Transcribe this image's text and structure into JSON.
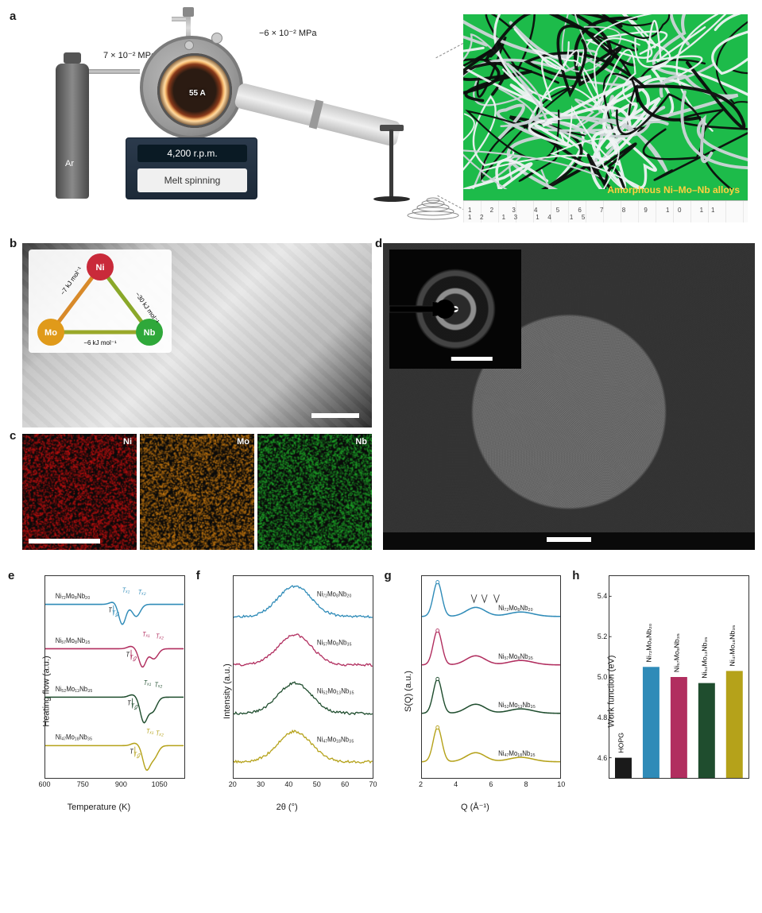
{
  "palette": {
    "blue": "#2f8bb8",
    "magenta": "#b12e5f",
    "dgreen": "#1f4d2e",
    "olive": "#b5a21a",
    "black": "#1a1a1a",
    "bg": "#ffffff"
  },
  "compositions": {
    "c1": "Ni₇₂Mo₈Nb₂₀",
    "c2": "Ni₅₇Mo₈Nb₃₅",
    "c3": "Ni₅₂Mo₁₃Nb₃₅",
    "c4": "Ni₄₇Mo₁₈Nb₃₅"
  },
  "panel_a": {
    "label": "a",
    "ar_label": "Ar",
    "pressure": "7 × 10⁻² MPa",
    "vacuum": "−6 × 10⁻² MPa",
    "current": "55 A",
    "rpm": "4,200 r.p.m.",
    "machine": "Melt spinning",
    "photo_caption": "Amorphous Ni–Mo–Nb alloys",
    "ruler_ticks": "1 2 3 4 5 6 7 8 9 10 11 12 13 14 15"
  },
  "panel_b": {
    "label": "b",
    "elements": {
      "Ni": "#c92a3a",
      "Mo": "#e09a1a",
      "Nb": "#2fa83a"
    },
    "enthalpies": {
      "Ni_Mo": "−7 kJ mol⁻¹",
      "Ni_Nb": "−30 kJ mol⁻¹",
      "Mo_Nb": "−6 kJ mol⁻¹"
    }
  },
  "panel_c": {
    "label": "c",
    "maps": [
      {
        "el": "Ni",
        "color": "#c51010"
      },
      {
        "el": "Mo",
        "color": "#c97a10"
      },
      {
        "el": "Nb",
        "color": "#1fae2a"
      }
    ]
  },
  "panel_d": {
    "label": "d"
  },
  "panel_e": {
    "label": "e",
    "ylabel": "Heating flow (a.u.)",
    "xlabel": "Temperature (K)",
    "xlim": [
      600,
      1150
    ],
    "xticks": [
      600,
      750,
      900,
      1050
    ],
    "annotations": [
      "Tg",
      "Tx1",
      "Tx2"
    ],
    "curves": [
      {
        "name": "Ni₇₂Mo₈Nb₂₀",
        "color": "#2f8bb8",
        "baseline": 0.86,
        "Tg": 870,
        "Tx1": 905,
        "Tx2": 960,
        "dip1": -0.1,
        "dip2": -0.06
      },
      {
        "name": "Ni₅₇Mo₈Nb₃₅",
        "color": "#b12e5f",
        "baseline": 0.64,
        "Tg": 940,
        "Tx1": 985,
        "Tx2": 1030,
        "dip1": -0.09,
        "dip2": -0.05
      },
      {
        "name": "Ni₅₂Mo₁₃Nb₃₅",
        "color": "#1f4d2e",
        "baseline": 0.4,
        "Tg": 945,
        "Tx1": 990,
        "Tx2": 1025,
        "dip1": -0.12,
        "dip2": -0.07
      },
      {
        "name": "Ni₄₇Mo₁₈Nb₃₅",
        "color": "#b5a21a",
        "baseline": 0.16,
        "Tg": 955,
        "Tx1": 1000,
        "Tx2": 1030,
        "dip1": -0.11,
        "dip2": -0.06
      }
    ]
  },
  "panel_f": {
    "label": "f",
    "ylabel": "Intensity (a.u.)",
    "xlabel": "2θ (°)",
    "xlim": [
      20,
      70
    ],
    "xticks": [
      20,
      30,
      40,
      50,
      60,
      70
    ],
    "peak_center": 42,
    "peak_hwhm": 6,
    "curves": [
      {
        "name": "Ni₇₂Mo₈Nb₂₀",
        "color": "#2f8bb8",
        "baseline": 0.8
      },
      {
        "name": "Ni₅₇Mo₈Nb₃₅",
        "color": "#b12e5f",
        "baseline": 0.56
      },
      {
        "name": "Ni₅₂Mo₁₃Nb₃₅",
        "color": "#1f4d2e",
        "baseline": 0.32
      },
      {
        "name": "Ni₄₇Mo₁₈Nb₃₅",
        "color": "#b5a21a",
        "baseline": 0.08
      }
    ]
  },
  "panel_g": {
    "label": "g",
    "ylabel": "S(Q) (a.u.)",
    "xlabel": "Q (Å⁻¹)",
    "xlim": [
      2,
      10
    ],
    "xticks": [
      2,
      4,
      6,
      8,
      10
    ],
    "peaks": [
      {
        "q": 2.9,
        "amp": 0.17,
        "w": 0.25
      },
      {
        "q": 5.1,
        "amp": 0.045,
        "w": 0.55
      },
      {
        "q": 7.7,
        "amp": 0.022,
        "w": 0.7
      }
    ],
    "curves": [
      {
        "name": "Ni₇₂Mo₈Nb₂₀",
        "color": "#2f8bb8",
        "baseline": 0.8,
        "arrows_at": [
          5.0,
          5.6,
          6.3
        ]
      },
      {
        "name": "Ni₅₇Mo₈Nb₃₅",
        "color": "#b12e5f",
        "baseline": 0.56
      },
      {
        "name": "Ni₅₂Mo₁₃Nb₃₅",
        "color": "#1f4d2e",
        "baseline": 0.32
      },
      {
        "name": "Ni₄₇Mo₁₈Nb₃₅",
        "color": "#b5a21a",
        "baseline": 0.08
      }
    ]
  },
  "panel_h": {
    "label": "h",
    "ylabel": "Work function (eV)",
    "ylim": [
      4.5,
      5.5
    ],
    "yticks": [
      4.6,
      4.8,
      5.0,
      5.2,
      5.4
    ],
    "bars": [
      {
        "name": "HOPG",
        "value": 4.6,
        "color": "#1a1a1a"
      },
      {
        "name": "Ni₇₂Mo₈Nb₂₀",
        "value": 5.05,
        "color": "#2f8bb8"
      },
      {
        "name": "Ni₅₇Mo₈Nb₃₅",
        "value": 5.0,
        "color": "#b12e5f"
      },
      {
        "name": "Ni₅₂Mo₁₃Nb₃₅",
        "value": 4.97,
        "color": "#1f4d2e"
      },
      {
        "name": "Ni₄₇Mo₁₈Nb₃₅",
        "value": 5.03,
        "color": "#b5a21a"
      }
    ]
  }
}
